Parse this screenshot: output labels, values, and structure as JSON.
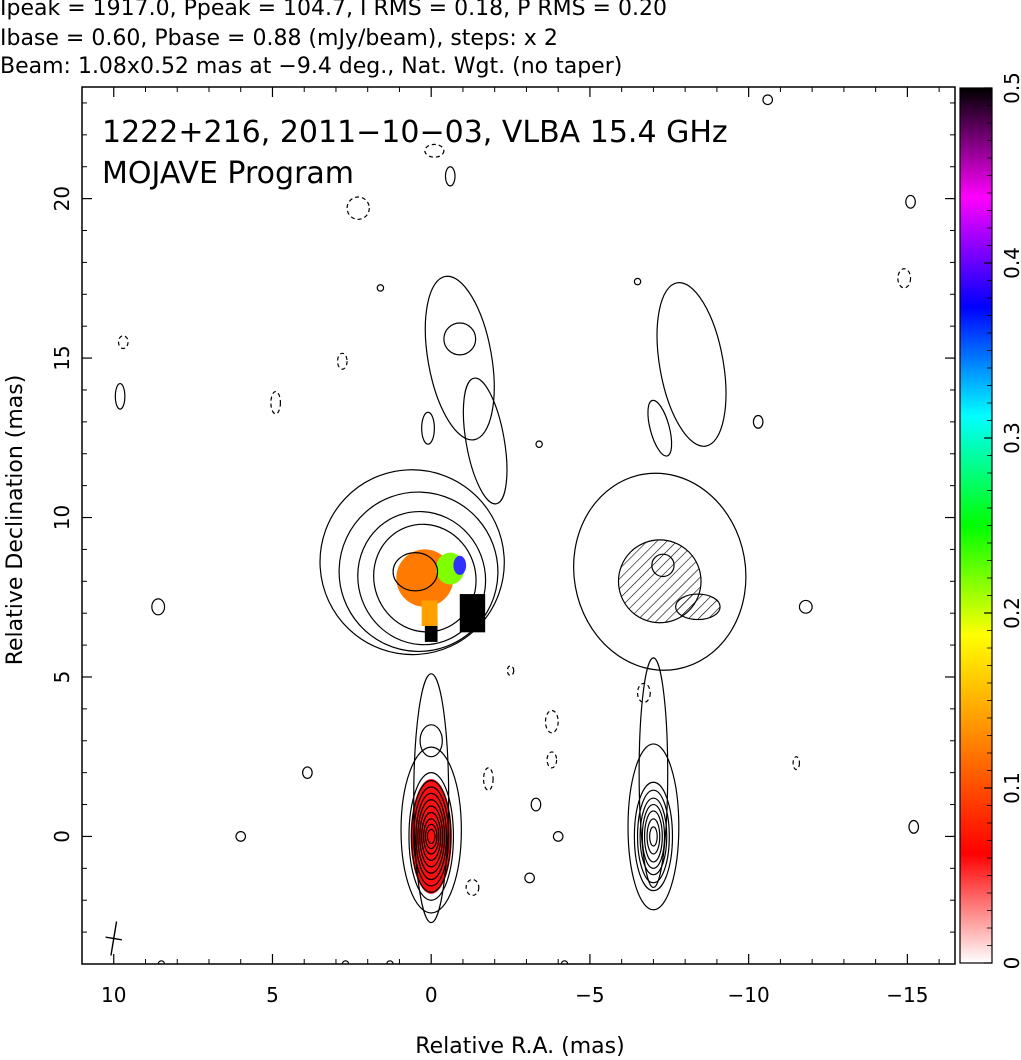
{
  "header": {
    "line1": "Ipeak = 1917.0, Ppeak = 104.7, I RMS = 0.18, P RMS = 0.20",
    "line2": "Ibase = 0.60, Pbase = 0.88 (mJy/beam), steps: x 2",
    "line3": "Beam: 1.08x0.52 mas at −9.4 deg., Nat. Wgt. (no taper)"
  },
  "chart_data": {
    "type": "heatmap",
    "title_line1": "1222+216, 2011−10−03, VLBA 15.4 GHz",
    "title_line2": "MOJAVE Program",
    "xlabel": "Relative R.A. (mas)",
    "ylabel": "Relative Declination (mas)",
    "xlim": [
      11,
      -16.5
    ],
    "ylim": [
      -4,
      23.5
    ],
    "x_ticks": [
      10,
      5,
      0,
      -5,
      -10,
      -15
    ],
    "x_tick_labels": [
      "10",
      "5",
      "0",
      "−5",
      "−10",
      "−15"
    ],
    "y_ticks": [
      0,
      5,
      10,
      15,
      20
    ],
    "y_tick_labels": [
      "0",
      "5",
      "10",
      "15",
      "20"
    ],
    "colorbar": {
      "range": [
        0,
        0.5
      ],
      "ticks": [
        0,
        0.1,
        0.2,
        0.3,
        0.4,
        0.5
      ],
      "tick_labels": [
        "0",
        "0.1",
        "0.2",
        "0.3",
        "0.4",
        "0.5"
      ],
      "stops": [
        "#ffffff",
        "#ff0000",
        "#ff8000",
        "#ffff00",
        "#00ff00",
        "#00ffff",
        "#0000ff",
        "#ff00ff",
        "#000000"
      ]
    },
    "left_panel": {
      "center_x": 0,
      "core": {
        "x": 0,
        "y": 0
      },
      "jet_knots": [
        {
          "x": 0,
          "y": 3
        },
        {
          "x": 0.1,
          "y": 8
        },
        {
          "x": -0.8,
          "y": 15.5
        }
      ],
      "fractional_polarization_regions": [
        {
          "x": 0,
          "y": 0,
          "value": 0.08
        },
        {
          "x": 0.2,
          "y": 8,
          "value": 0.13
        },
        {
          "x": -0.7,
          "y": 8.5,
          "value": 0.22
        },
        {
          "x": -1.3,
          "y": 7,
          "value": 0.5
        },
        {
          "x": 0,
          "y": 6.3,
          "value": 0.5
        }
      ]
    },
    "right_panel": {
      "center_x": -7,
      "core": {
        "x": -7,
        "y": 0
      }
    },
    "beam": {
      "x": 10,
      "y": -3.2,
      "major": 1.08,
      "minor": 0.52,
      "pa_deg": -9.4
    }
  }
}
